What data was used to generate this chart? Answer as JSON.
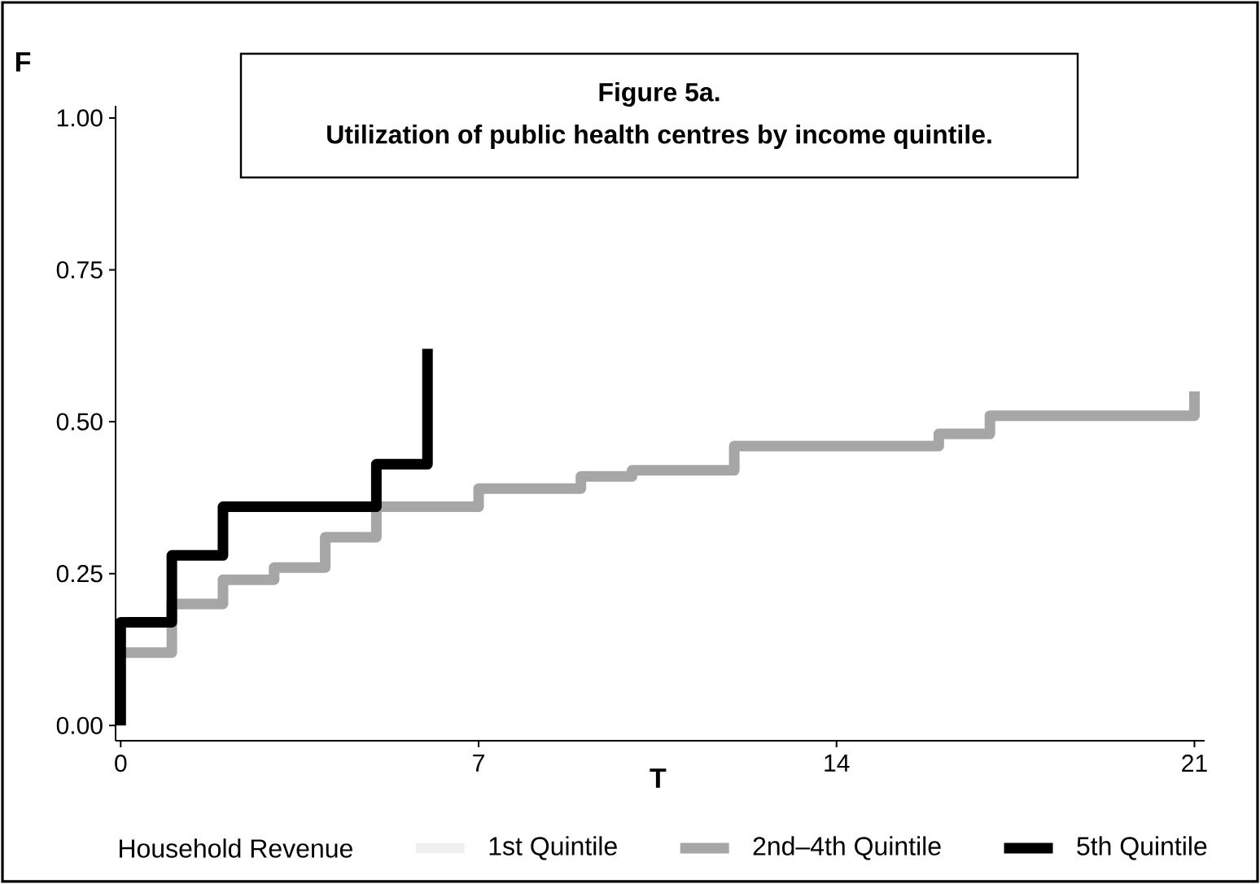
{
  "chart_data": {
    "type": "step",
    "title": "Figure 5a.",
    "subtitle": "Utilization of public health centres by income quintile.",
    "xlabel": "T",
    "ylabel": "F",
    "legend_title": "Household Revenue",
    "series": [
      {
        "name": "1st Quintile",
        "color": "#f0f0f0"
      },
      {
        "name": "2nd–4th Quintile",
        "color": "#a6a6a6",
        "x": [
          0,
          1,
          2,
          3,
          4,
          5,
          7,
          9,
          10,
          12,
          16,
          17,
          21
        ],
        "values": [
          0.12,
          0.2,
          0.24,
          0.26,
          0.31,
          0.36,
          0.39,
          0.41,
          0.42,
          0.46,
          0.48,
          0.51,
          0.55
        ]
      },
      {
        "name": "5th Quintile",
        "color": "#000000",
        "x": [
          0,
          0,
          1,
          2,
          5,
          6
        ],
        "values": [
          0,
          0.17,
          0.28,
          0.36,
          0.43,
          0.62
        ]
      }
    ],
    "xlim": [
      -0.1,
      21.2
    ],
    "xticks": [
      0,
      7,
      14,
      21
    ],
    "ylim": [
      -0.025,
      1.02
    ],
    "yticks": [
      {
        "value": 0,
        "label": "0.00"
      },
      {
        "value": 0.25,
        "label": "0.25"
      },
      {
        "value": 0.5,
        "label": "0.50"
      },
      {
        "value": 0.75,
        "label": "0.75"
      },
      {
        "value": 1,
        "label": "1.00"
      }
    ],
    "legend": "bottom",
    "line_style": "solid"
  }
}
